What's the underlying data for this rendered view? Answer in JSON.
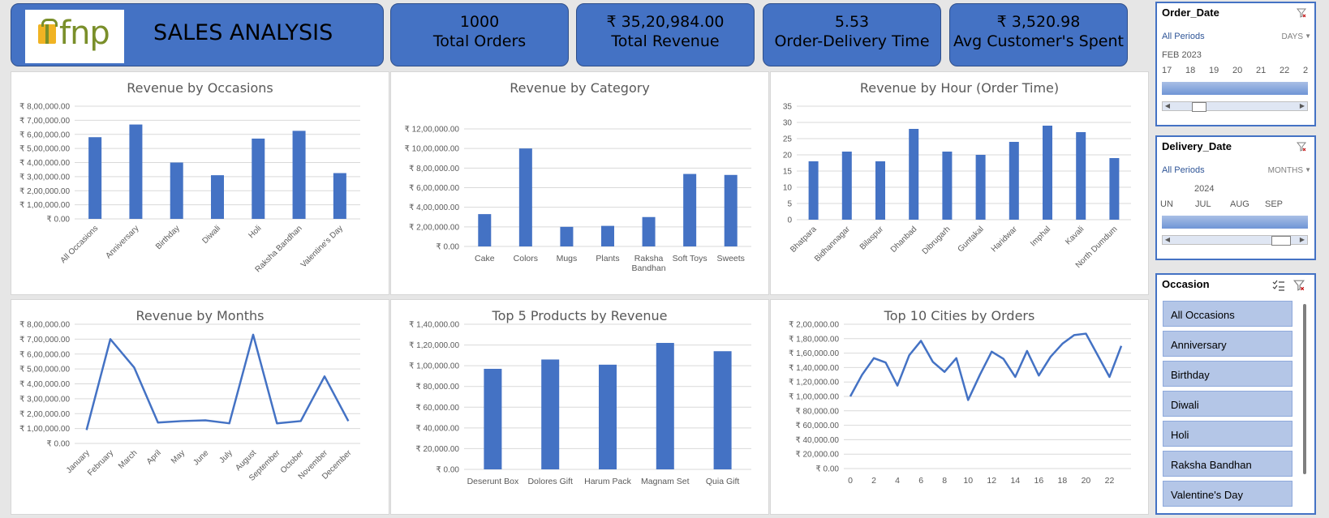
{
  "header": {
    "logo_text": "fnp",
    "title": "SALES ANALYSIS"
  },
  "kpis": [
    {
      "value": "1000",
      "label": "Total Orders"
    },
    {
      "value": "₹ 35,20,984.00",
      "label": "Total Revenue"
    },
    {
      "value": "5.53",
      "label": "Order-Delivery Time"
    },
    {
      "value": "₹ 3,520.98",
      "label": "Avg Customer's Spent"
    }
  ],
  "colors": {
    "accent": "#4472c4",
    "bar": "#4472c4",
    "line": "#4472c4"
  },
  "chart_data": [
    {
      "type": "bar",
      "title": "Revenue by Occasions",
      "categories": [
        "All Occasions",
        "Anniversary",
        "Birthday",
        "Diwali",
        "Holi",
        "Raksha Bandhan",
        "Valentine's Day"
      ],
      "values": [
        580000,
        670000,
        400000,
        310000,
        570000,
        625000,
        325000
      ],
      "ylim": [
        0,
        800000
      ],
      "yticks": [
        "₹ 0.00",
        "₹ 1,00,000.00",
        "₹ 2,00,000.00",
        "₹ 3,00,000.00",
        "₹ 4,00,000.00",
        "₹ 5,00,000.00",
        "₹ 6,00,000.00",
        "₹ 7,00,000.00",
        "₹ 8,00,000.00"
      ],
      "grid": true
    },
    {
      "type": "bar",
      "title": "Revenue by Category",
      "categories": [
        "Cake",
        "Colors",
        "Mugs",
        "Plants",
        "Raksha Bandhan",
        "Soft Toys",
        "Sweets"
      ],
      "values": [
        330000,
        1000000,
        200000,
        210000,
        300000,
        740000,
        730000
      ],
      "ylim": [
        0,
        1200000
      ],
      "yticks": [
        "₹ 0.00",
        "₹ 2,00,000.00",
        "₹ 4,00,000.00",
        "₹ 6,00,000.00",
        "₹ 8,00,000.00",
        "₹ 10,00,000.00",
        "₹ 12,00,000.00"
      ],
      "grid": true
    },
    {
      "type": "bar",
      "title": "Revenue by Hour (Order Time)",
      "categories": [
        "Bhatpara",
        "Bidhannagar",
        "Bilaspur",
        "Dhanbad",
        "Dibrugarh",
        "Guntakal",
        "Haridwar",
        "Imphal",
        "Kavali",
        "North Dumdum"
      ],
      "values": [
        18,
        21,
        18,
        28,
        21,
        20,
        24,
        29,
        27,
        19
      ],
      "ylim": [
        0,
        35
      ],
      "yticks": [
        "0",
        "5",
        "10",
        "15",
        "20",
        "25",
        "30",
        "35"
      ],
      "grid": true
    },
    {
      "type": "line",
      "title": "Revenue by Months",
      "categories": [
        "January",
        "February",
        "March",
        "April",
        "May",
        "June",
        "July",
        "August",
        "September",
        "October",
        "November",
        "December"
      ],
      "values": [
        90000,
        700000,
        510000,
        140000,
        150000,
        155000,
        135000,
        730000,
        135000,
        150000,
        450000,
        150000
      ],
      "ylim": [
        0,
        800000
      ],
      "yticks": [
        "₹ 0.00",
        "₹ 1,00,000.00",
        "₹ 2,00,000.00",
        "₹ 3,00,000.00",
        "₹ 4,00,000.00",
        "₹ 5,00,000.00",
        "₹ 6,00,000.00",
        "₹ 7,00,000.00",
        "₹ 8,00,000.00"
      ],
      "grid": true
    },
    {
      "type": "bar",
      "title": "Top 5 Products by Revenue",
      "categories": [
        "Deserunt Box",
        "Dolores Gift",
        "Harum Pack",
        "Magnam Set",
        "Quia Gift"
      ],
      "values": [
        97000,
        106000,
        101000,
        122000,
        114000
      ],
      "ylim": [
        0,
        140000
      ],
      "yticks": [
        "₹ 0.00",
        "₹ 20,000.00",
        "₹ 40,000.00",
        "₹ 60,000.00",
        "₹ 80,000.00",
        "₹ 1,00,000.00",
        "₹ 1,20,000.00",
        "₹ 1,40,000.00"
      ],
      "grid": true
    },
    {
      "type": "line",
      "title": "Top 10 Cities by Orders",
      "x": [
        0,
        1,
        2,
        3,
        4,
        5,
        6,
        7,
        8,
        9,
        10,
        11,
        12,
        13,
        14,
        15,
        16,
        17,
        18,
        19,
        20,
        21,
        22,
        23
      ],
      "xticks": [
        "0",
        "2",
        "4",
        "6",
        "8",
        "10",
        "12",
        "14",
        "16",
        "18",
        "20",
        "22"
      ],
      "values": [
        100000,
        130000,
        153000,
        147000,
        115000,
        157000,
        177000,
        148000,
        134000,
        153000,
        95000,
        130000,
        162000,
        152000,
        127000,
        163000,
        129000,
        155000,
        173000,
        185000,
        187000,
        157000,
        127000,
        170000
      ],
      "ylim": [
        0,
        200000
      ],
      "yticks": [
        "₹ 0.00",
        "₹ 20,000.00",
        "₹ 40,000.00",
        "₹ 60,000.00",
        "₹ 80,000.00",
        "₹ 1,00,000.00",
        "₹ 1,20,000.00",
        "₹ 1,40,000.00",
        "₹ 1,60,000.00",
        "₹ 1,80,000.00",
        "₹ 2,00,000.00"
      ],
      "grid": true
    }
  ],
  "slicers": {
    "order_date": {
      "title": "Order_Date",
      "period": "All Periods",
      "level": "DAYS",
      "range_label": "FEB 2023",
      "ticks": [
        "17",
        "18",
        "19",
        "20",
        "21",
        "22",
        "2"
      ]
    },
    "delivery_date": {
      "title": "Delivery_Date",
      "period": "All Periods",
      "level": "MONTHS",
      "range_label": "2024",
      "ticks": [
        "UN",
        "JUL",
        "AUG",
        "SEP"
      ]
    },
    "occasion": {
      "title": "Occasion",
      "items": [
        "All Occasions",
        "Anniversary",
        "Birthday",
        "Diwali",
        "Holi",
        "Raksha Bandhan",
        "Valentine's Day"
      ]
    }
  }
}
